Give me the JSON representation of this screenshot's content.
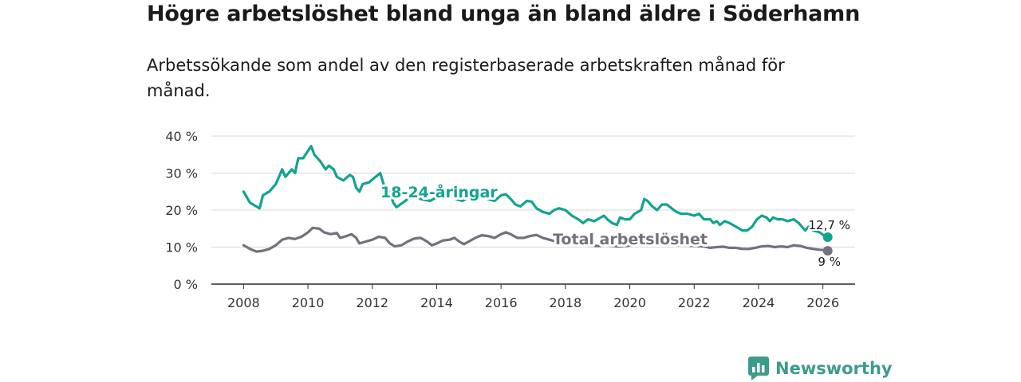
{
  "header": {
    "title": "Högre arbetslöshet bland unga än bland äldre i Söderhamn",
    "subtitle": "Arbetssökande som andel av den registerbaserade arbetskraften månad för månad."
  },
  "brand": {
    "name": "Newsworthy"
  },
  "chart_data": {
    "type": "line",
    "title": "Högre arbetslöshet bland unga än bland äldre i Söderhamn",
    "subtitle": "Arbetssökande som andel av den registerbaserade arbetskraften månad för månad.",
    "xlabel": "",
    "ylabel": "",
    "xlim": [
      2007,
      2027
    ],
    "ylim": [
      0,
      40
    ],
    "x_ticks": [
      2008,
      2010,
      2012,
      2014,
      2016,
      2018,
      2020,
      2022,
      2024,
      2026
    ],
    "y_ticks": [
      0,
      10,
      20,
      30,
      40
    ],
    "y_tick_labels": [
      "0 %",
      "10 %",
      "20 %",
      "30 %",
      "40 %"
    ],
    "grid": true,
    "series": [
      {
        "name": "18-24-åringar",
        "color": "#13a391",
        "end_label": "12,7 %",
        "points": [
          [
            2008.0,
            25
          ],
          [
            2008.2,
            22
          ],
          [
            2008.5,
            20.5
          ],
          [
            2008.6,
            24
          ],
          [
            2008.8,
            25
          ],
          [
            2009.0,
            27
          ],
          [
            2009.2,
            31
          ],
          [
            2009.3,
            29
          ],
          [
            2009.5,
            31
          ],
          [
            2009.6,
            30
          ],
          [
            2009.7,
            34
          ],
          [
            2009.85,
            34
          ],
          [
            2010.0,
            36
          ],
          [
            2010.1,
            37.3
          ],
          [
            2010.2,
            35
          ],
          [
            2010.4,
            33
          ],
          [
            2010.55,
            31
          ],
          [
            2010.65,
            32
          ],
          [
            2010.8,
            31
          ],
          [
            2010.9,
            29
          ],
          [
            2011.1,
            28
          ],
          [
            2011.3,
            29.5
          ],
          [
            2011.4,
            29
          ],
          [
            2011.5,
            26
          ],
          [
            2011.6,
            25
          ],
          [
            2011.7,
            27
          ],
          [
            2011.9,
            27.5
          ],
          [
            2012.1,
            29
          ],
          [
            2012.25,
            30
          ],
          [
            2012.35,
            27
          ],
          [
            2012.5,
            26
          ],
          [
            2012.65,
            22
          ],
          [
            2012.75,
            20.8
          ],
          [
            2012.95,
            22
          ],
          [
            2013.1,
            23
          ],
          [
            2013.3,
            24
          ],
          [
            2013.5,
            23
          ],
          [
            2013.8,
            22.5
          ],
          [
            2014.0,
            23.5
          ],
          [
            2014.3,
            24.5
          ],
          [
            2014.6,
            23
          ],
          [
            2014.8,
            22.5
          ],
          [
            2015.0,
            23.5
          ],
          [
            2015.3,
            24
          ],
          [
            2015.6,
            23
          ],
          [
            2015.8,
            22.5
          ],
          [
            2016.0,
            24
          ],
          [
            2016.15,
            24.3
          ],
          [
            2016.3,
            23
          ],
          [
            2016.45,
            21.5
          ],
          [
            2016.6,
            21
          ],
          [
            2016.8,
            22.5
          ],
          [
            2016.95,
            22.3
          ],
          [
            2017.1,
            20.5
          ],
          [
            2017.3,
            19.5
          ],
          [
            2017.5,
            19
          ],
          [
            2017.65,
            20
          ],
          [
            2017.8,
            20.5
          ],
          [
            2018.0,
            20
          ],
          [
            2018.2,
            18.5
          ],
          [
            2018.4,
            17.5
          ],
          [
            2018.55,
            16.5
          ],
          [
            2018.7,
            17.5
          ],
          [
            2018.9,
            17
          ],
          [
            2019.1,
            18
          ],
          [
            2019.2,
            18.5
          ],
          [
            2019.3,
            17.5
          ],
          [
            2019.45,
            16.5
          ],
          [
            2019.6,
            16
          ],
          [
            2019.7,
            18
          ],
          [
            2019.85,
            17.5
          ],
          [
            2020.0,
            17.5
          ],
          [
            2020.15,
            19
          ],
          [
            2020.35,
            20
          ],
          [
            2020.45,
            23
          ],
          [
            2020.55,
            22.5
          ],
          [
            2020.7,
            21
          ],
          [
            2020.85,
            20
          ],
          [
            2021.0,
            21.5
          ],
          [
            2021.15,
            21.5
          ],
          [
            2021.3,
            20.5
          ],
          [
            2021.45,
            19.5
          ],
          [
            2021.6,
            19
          ],
          [
            2021.8,
            19
          ],
          [
            2022.0,
            18.5
          ],
          [
            2022.15,
            19
          ],
          [
            2022.3,
            17.5
          ],
          [
            2022.5,
            17.5
          ],
          [
            2022.6,
            16.5
          ],
          [
            2022.7,
            17
          ],
          [
            2022.8,
            16
          ],
          [
            2022.95,
            17
          ],
          [
            2023.1,
            16.5
          ],
          [
            2023.3,
            15.5
          ],
          [
            2023.5,
            14.5
          ],
          [
            2023.65,
            14.5
          ],
          [
            2023.8,
            15.5
          ],
          [
            2023.95,
            17.5
          ],
          [
            2024.1,
            18.5
          ],
          [
            2024.25,
            18
          ],
          [
            2024.35,
            17
          ],
          [
            2024.45,
            18
          ],
          [
            2024.6,
            17.5
          ],
          [
            2024.75,
            17.5
          ],
          [
            2024.9,
            17
          ],
          [
            2025.1,
            17.5
          ],
          [
            2025.25,
            16.5
          ],
          [
            2025.35,
            15.5
          ],
          [
            2025.45,
            14.5
          ],
          [
            2025.55,
            15.5
          ],
          [
            2025.7,
            14.5
          ],
          [
            2025.9,
            14
          ],
          [
            2026.05,
            13
          ],
          [
            2026.15,
            12.7
          ]
        ]
      },
      {
        "name": "Total arbetslöshet",
        "color": "#75707d",
        "end_label": "9 %",
        "points": [
          [
            2008.0,
            10.5
          ],
          [
            2008.2,
            9.5
          ],
          [
            2008.4,
            8.8
          ],
          [
            2008.6,
            9
          ],
          [
            2008.8,
            9.5
          ],
          [
            2009.0,
            10.5
          ],
          [
            2009.2,
            12
          ],
          [
            2009.4,
            12.5
          ],
          [
            2009.6,
            12.2
          ],
          [
            2009.8,
            12.8
          ],
          [
            2010.0,
            14
          ],
          [
            2010.15,
            15.2
          ],
          [
            2010.35,
            15
          ],
          [
            2010.5,
            14
          ],
          [
            2010.7,
            13.5
          ],
          [
            2010.9,
            13.8
          ],
          [
            2011.0,
            12.5
          ],
          [
            2011.2,
            13
          ],
          [
            2011.35,
            13.5
          ],
          [
            2011.5,
            12.5
          ],
          [
            2011.6,
            11
          ],
          [
            2011.8,
            11.5
          ],
          [
            2012.0,
            12
          ],
          [
            2012.2,
            12.8
          ],
          [
            2012.4,
            12.5
          ],
          [
            2012.55,
            11
          ],
          [
            2012.7,
            10.2
          ],
          [
            2012.9,
            10.5
          ],
          [
            2013.1,
            11.5
          ],
          [
            2013.3,
            12.3
          ],
          [
            2013.5,
            12.5
          ],
          [
            2013.7,
            11.5
          ],
          [
            2013.85,
            10.5
          ],
          [
            2014.0,
            11
          ],
          [
            2014.2,
            11.8
          ],
          [
            2014.4,
            12
          ],
          [
            2014.55,
            12.5
          ],
          [
            2014.7,
            11.5
          ],
          [
            2014.85,
            10.8
          ],
          [
            2015.0,
            11.5
          ],
          [
            2015.2,
            12.5
          ],
          [
            2015.4,
            13.2
          ],
          [
            2015.6,
            13
          ],
          [
            2015.8,
            12.5
          ],
          [
            2016.0,
            13.5
          ],
          [
            2016.15,
            14
          ],
          [
            2016.3,
            13.5
          ],
          [
            2016.5,
            12.5
          ],
          [
            2016.7,
            12.5
          ],
          [
            2016.9,
            13
          ],
          [
            2017.1,
            13.3
          ],
          [
            2017.3,
            12.5
          ],
          [
            2017.5,
            12
          ],
          [
            2017.7,
            11.5
          ],
          [
            2017.9,
            11
          ],
          [
            2018.1,
            11.5
          ],
          [
            2018.3,
            11
          ],
          [
            2018.5,
            10.5
          ],
          [
            2018.7,
            10.5
          ],
          [
            2019.0,
            10.3
          ],
          [
            2019.3,
            10.5
          ],
          [
            2019.6,
            10.2
          ],
          [
            2019.9,
            10.3
          ],
          [
            2020.2,
            10.8
          ],
          [
            2020.5,
            11.5
          ],
          [
            2020.8,
            11
          ],
          [
            2021.1,
            11
          ],
          [
            2021.4,
            10.5
          ],
          [
            2021.7,
            10.5
          ],
          [
            2022.0,
            10.3
          ],
          [
            2022.3,
            10.2
          ],
          [
            2022.5,
            9.8
          ],
          [
            2022.7,
            10
          ],
          [
            2022.9,
            10.1
          ],
          [
            2023.1,
            9.8
          ],
          [
            2023.3,
            9.8
          ],
          [
            2023.5,
            9.5
          ],
          [
            2023.7,
            9.5
          ],
          [
            2023.9,
            9.8
          ],
          [
            2024.1,
            10.2
          ],
          [
            2024.3,
            10.3
          ],
          [
            2024.5,
            10
          ],
          [
            2024.7,
            10.2
          ],
          [
            2024.9,
            10
          ],
          [
            2025.1,
            10.5
          ],
          [
            2025.3,
            10.3
          ],
          [
            2025.5,
            9.8
          ],
          [
            2025.7,
            9.5
          ],
          [
            2025.9,
            9.3
          ],
          [
            2026.05,
            9.2
          ],
          [
            2026.15,
            9
          ]
        ]
      }
    ]
  }
}
